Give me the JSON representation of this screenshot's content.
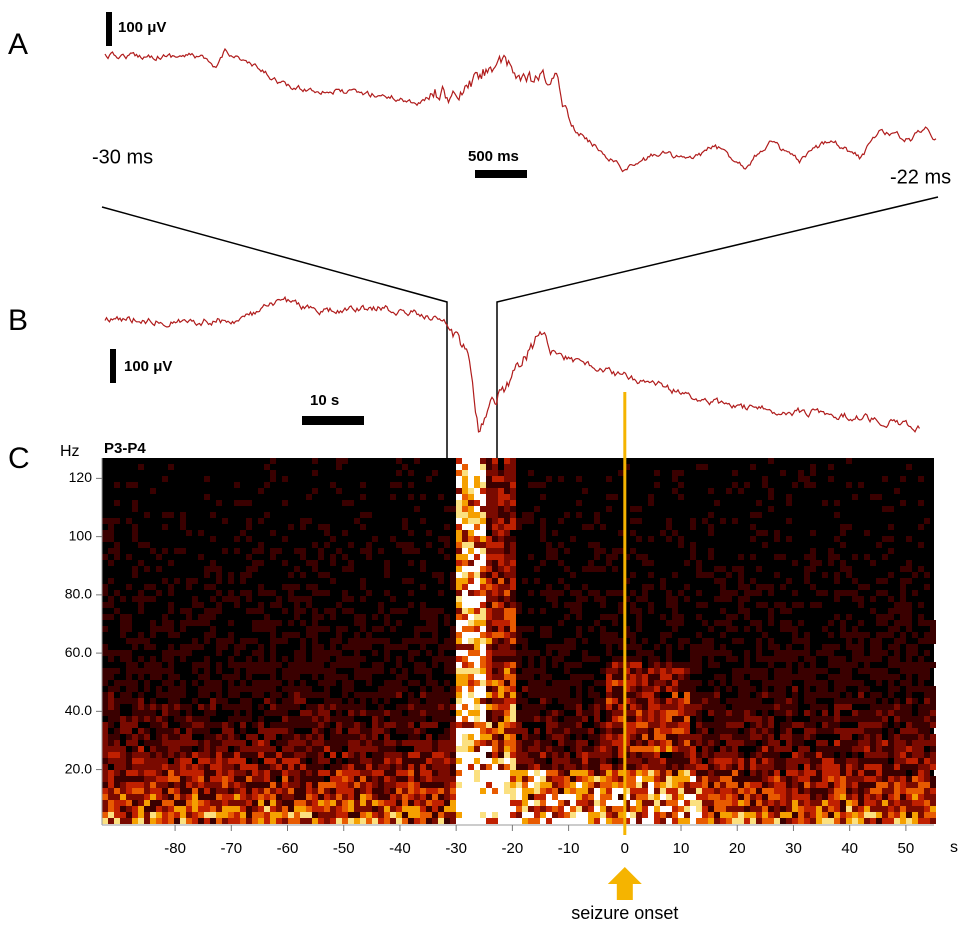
{
  "panels": {
    "A": {
      "label": "A",
      "scale": "100 μV",
      "start": "-30 ms",
      "end": "-22 ms",
      "time_scale": "500 ms"
    },
    "B": {
      "label": "B",
      "scale": "100 μV",
      "time_scale": "10 s"
    },
    "C": {
      "label": "C"
    }
  },
  "chart_data": {
    "type": "spectrogram",
    "title": "P3-P4",
    "y_label": "Hz",
    "x_label": "s",
    "xlim": [
      -93,
      55
    ],
    "ylim": [
      2,
      127
    ],
    "xticks": [
      -80,
      -70,
      -60,
      -50,
      -40,
      -30,
      -20,
      -10,
      0,
      10,
      20,
      30,
      40,
      50
    ],
    "yticks": [
      {
        "value": 20,
        "label": "20.0"
      },
      {
        "value": 40,
        "label": "40.0"
      },
      {
        "value": 60,
        "label": "60.0"
      },
      {
        "value": 80,
        "label": "80.0"
      },
      100,
      120
    ],
    "annotation": {
      "text": "seizure onset",
      "x": 0,
      "color": "#f5b400"
    },
    "trace_color": "#b01c1c"
  }
}
